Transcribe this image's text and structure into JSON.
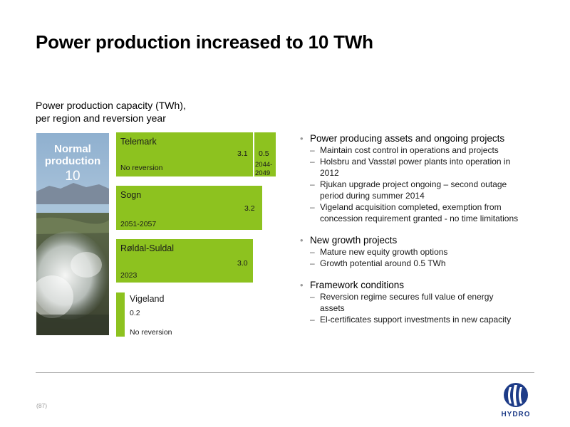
{
  "slide": {
    "title": "Power production increased to 10 TWh",
    "subtitle_line1": "Power production capacity (TWh),",
    "subtitle_line2": "per region and reversion year",
    "page_number": "(87)",
    "logo_text": "HYDRO"
  },
  "photo": {
    "label_line1": "Normal",
    "label_line2": "production",
    "value": "10"
  },
  "regions": [
    {
      "name": "Telemark",
      "value": "3.1",
      "reversion": "No reversion",
      "extra_value": "0.5",
      "extra_reversion_line1": "2044-",
      "extra_reversion_line2": "2049"
    },
    {
      "name": "Sogn",
      "value": "3.2",
      "reversion": "2051-2057"
    },
    {
      "name": "Røldal-Suldal",
      "value": "3.0",
      "reversion": "2023"
    },
    {
      "name": "Vigeland",
      "value": "0.2",
      "reversion": "No reversion"
    }
  ],
  "bullets": [
    {
      "heading": "Power producing assets and ongoing projects",
      "items": [
        [
          "Maintain cost control in operations and projects"
        ],
        [
          "Holsbru and Vasstøl power plants into operation in",
          "2012"
        ],
        [
          "Rjukan upgrade project ongoing – second outage",
          "period during summer 2014"
        ],
        [
          "Vigeland acquisition completed, exemption from",
          "concession requirement granted - no time limitations"
        ]
      ]
    },
    {
      "heading": "New growth projects",
      "items": [
        [
          "Mature new equity growth options"
        ],
        [
          "Growth potential around 0.5 TWh"
        ]
      ]
    },
    {
      "heading": "Framework conditions",
      "items": [
        [
          "Reversion regime secures full value of energy",
          "assets"
        ],
        [
          "El-certificates support investments in new capacity"
        ]
      ]
    }
  ],
  "colors": {
    "bar": "#8dc21f",
    "logo": "#1e3c88"
  },
  "icons": {
    "logo": "hydro-logo-icon"
  }
}
